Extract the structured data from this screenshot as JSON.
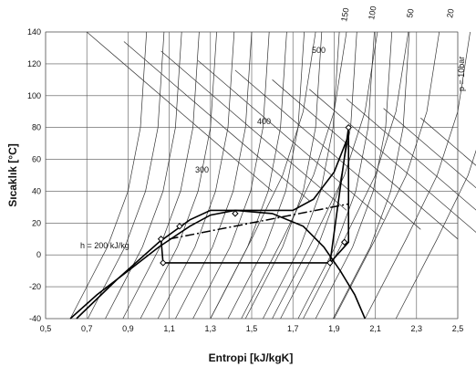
{
  "chart_data": {
    "type": "line",
    "xlabel": "Entropi [kJ/kgK]",
    "ylabel": "Sıcaklık [°C]",
    "xlim": [
      0.5,
      2.5
    ],
    "ylim": [
      -40,
      140
    ],
    "x_ticks": [
      "0,5",
      "0,7",
      "0,9",
      "1,1",
      "1,3",
      "1,5",
      "1,7",
      "1,9",
      "2,1",
      "2,3",
      "2,5"
    ],
    "y_ticks": [
      "-40",
      "-20",
      "0",
      "20",
      "40",
      "60",
      "80",
      "100",
      "120",
      "140"
    ],
    "grid": true,
    "annotations": {
      "h200": "h = 200 kJ/kg",
      "h300": "300",
      "h400": "400",
      "h500": "500",
      "p_label": "p = 10bar",
      "p150": "150",
      "p100": "100",
      "p50": "50",
      "p20": "20"
    },
    "saturation_dome": {
      "liquid": [
        [
          0.62,
          -40
        ],
        [
          0.75,
          -25
        ],
        [
          0.9,
          -10
        ],
        [
          1.05,
          5
        ],
        [
          1.2,
          18
        ],
        [
          1.3,
          25
        ],
        [
          1.42,
          28
        ]
      ],
      "vapor": [
        [
          1.42,
          28
        ],
        [
          1.6,
          26
        ],
        [
          1.75,
          18
        ],
        [
          1.85,
          5
        ],
        [
          1.93,
          -10
        ],
        [
          2.0,
          -25
        ],
        [
          2.05,
          -40
        ]
      ]
    },
    "isobar_10bar": [
      [
        0.65,
        -40
      ],
      [
        0.85,
        -15
      ],
      [
        1.05,
        8
      ],
      [
        1.2,
        22
      ],
      [
        1.3,
        28
      ],
      [
        1.5,
        28
      ],
      [
        1.7,
        28
      ],
      [
        1.8,
        35
      ],
      [
        1.9,
        52
      ],
      [
        1.97,
        75
      ]
    ],
    "cycle": [
      [
        1.06,
        10
      ],
      [
        1.07,
        -5
      ],
      [
        1.88,
        -5
      ],
      [
        1.97,
        80
      ],
      [
        1.97,
        8
      ],
      [
        1.88,
        -5
      ]
    ],
    "dashdot_line": [
      [
        1.1,
        10
      ],
      [
        1.97,
        32
      ]
    ],
    "markers": [
      [
        1.06,
        10
      ],
      [
        1.07,
        -5
      ],
      [
        1.88,
        -5
      ],
      [
        1.97,
        80
      ],
      [
        1.95,
        8
      ],
      [
        1.42,
        26
      ],
      [
        1.15,
        18
      ]
    ]
  }
}
